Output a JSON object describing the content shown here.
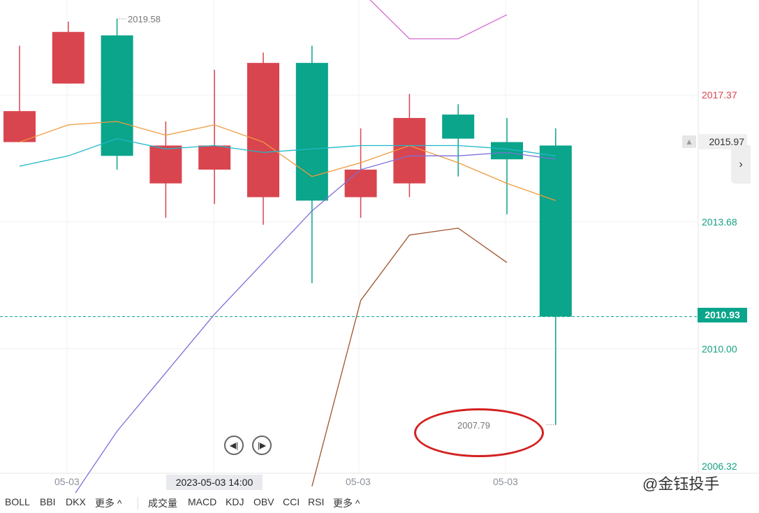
{
  "price_axis": {
    "labels": [
      {
        "text": "2017.37",
        "color": "#d9454f"
      },
      {
        "text": "2013.68",
        "color": "#14a182"
      },
      {
        "text": "2010.00",
        "color": "#14a182"
      },
      {
        "text": "2006.32",
        "color": "#14a182"
      }
    ],
    "last_value": "2015.97",
    "current_price": "2010.93"
  },
  "markers": {
    "high": "2019.58",
    "low": "2007.79"
  },
  "time_axis": {
    "labels": [
      "05-03",
      "05-03",
      "05-03"
    ],
    "cursor_date": "2023-05-03 14:00"
  },
  "navigation": {
    "first_icon": "skip-to-start-icon",
    "next_icon": "play-next-icon"
  },
  "indicator_tabs": {
    "main": [
      "BOLL",
      "BBI",
      "DKX",
      "更多 ^"
    ],
    "sub": [
      "成交量",
      "MACD",
      "KDJ",
      "OBV",
      "CCI",
      "RSI",
      "更多 ^"
    ]
  },
  "watermark": "@金钰投手",
  "colors": {
    "up": "#d9454f",
    "down": "#0aa58a",
    "ma_orange": "#f09a3c",
    "ma_cyan": "#1fb8c8",
    "ma_purple": "#7b6fd8",
    "ma_brown": "#a0522d",
    "ma_magenta": "#d46bd0",
    "grid": "#f0f0f0"
  },
  "chart_data": {
    "type": "candlestick",
    "candles": [
      {
        "open": 2016.0,
        "close": 2016.9,
        "high": 2018.8,
        "low": 2016.0
      },
      {
        "open": 2017.7,
        "close": 2019.2,
        "high": 2019.5,
        "low": 2017.7
      },
      {
        "open": 2019.1,
        "close": 2015.6,
        "high": 2019.58,
        "low": 2015.2
      },
      {
        "open": 2014.8,
        "close": 2015.9,
        "high": 2016.6,
        "low": 2013.8
      },
      {
        "open": 2015.2,
        "close": 2015.9,
        "high": 2018.1,
        "low": 2014.2
      },
      {
        "open": 2014.4,
        "close": 2018.3,
        "high": 2018.6,
        "low": 2013.6
      },
      {
        "open": 2018.3,
        "close": 2014.3,
        "high": 2018.8,
        "low": 2011.9
      },
      {
        "open": 2014.4,
        "close": 2015.2,
        "high": 2016.4,
        "low": 2013.8
      },
      {
        "open": 2014.8,
        "close": 2016.7,
        "high": 2017.4,
        "low": 2014.4
      },
      {
        "open": 2016.8,
        "close": 2016.1,
        "high": 2017.1,
        "low": 2015.0
      },
      {
        "open": 2016.0,
        "close": 2015.5,
        "high": 2016.7,
        "low": 2013.9
      },
      {
        "open": 2015.9,
        "close": 2010.93,
        "high": 2016.4,
        "low": 2007.79
      }
    ],
    "series": [
      {
        "color": "#f09a3c",
        "values": [
          2016.0,
          2016.5,
          2016.6,
          2016.2,
          2016.5,
          2016.0,
          2015.0,
          2015.4,
          2015.9,
          2015.4,
          2014.8,
          2014.3
        ]
      },
      {
        "color": "#1fb8c8",
        "values": [
          2015.3,
          2015.6,
          2016.1,
          2015.8,
          2015.9,
          2015.7,
          2015.8,
          2015.9,
          2015.9,
          2015.9,
          2015.8,
          2015.6
        ]
      },
      {
        "color": "#7b6fd8",
        "values": [
          null,
          2005.5,
          2007.6,
          2009.3,
          2011.0,
          2012.5,
          2014.0,
          2015.2,
          2015.6,
          2015.6,
          2015.7,
          2015.5
        ]
      },
      {
        "color": "#a0522d",
        "values": [
          null,
          null,
          null,
          null,
          null,
          null,
          2006.0,
          2011.4,
          2013.3,
          2013.5,
          2012.5,
          null
        ]
      },
      {
        "color": "#d46bd0",
        "values": [
          null,
          null,
          null,
          null,
          null,
          null,
          null,
          2020.4,
          2019.0,
          2019.0,
          2019.7,
          null
        ]
      }
    ],
    "ylim": [
      2006.32,
      2020.5
    ],
    "y_ticks": [
      2017.37,
      2013.68,
      2010.0,
      2006.32
    ]
  }
}
